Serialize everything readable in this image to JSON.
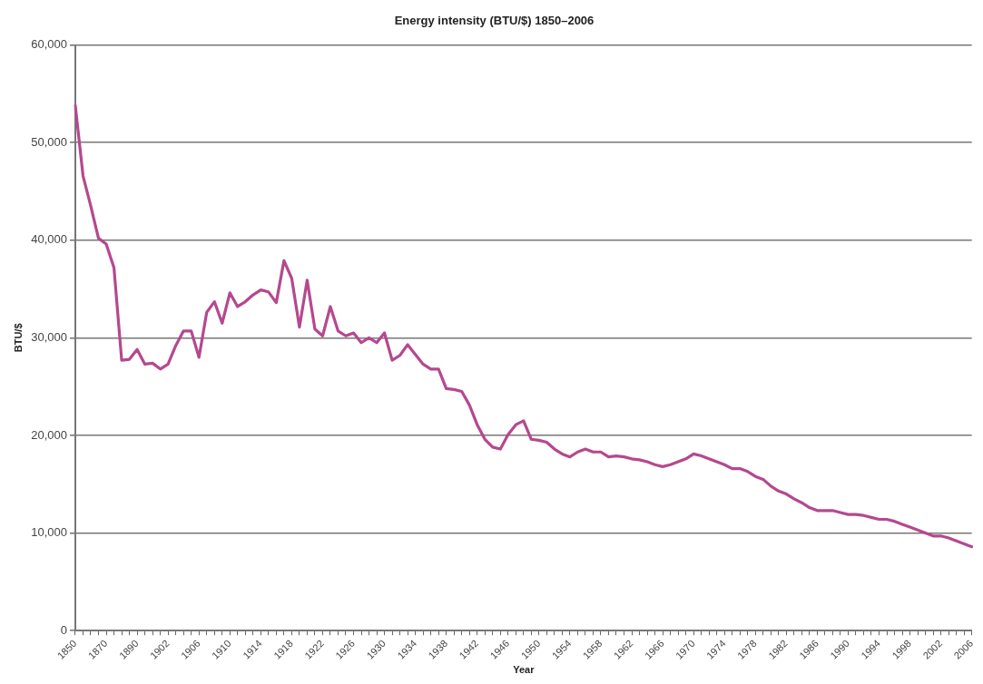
{
  "chart_data": {
    "type": "line",
    "title": "Energy intensity (BTU/$) 1850–2006",
    "xlabel": "Year",
    "ylabel": "BTU/$",
    "categories": [
      "1850",
      null,
      null,
      null,
      "1870",
      null,
      null,
      null,
      "1890",
      null,
      null,
      null,
      "1902",
      null,
      null,
      null,
      "1906",
      null,
      null,
      null,
      "1910",
      null,
      null,
      null,
      "1914",
      null,
      null,
      null,
      "1918",
      null,
      null,
      null,
      "1922",
      null,
      null,
      null,
      "1926",
      null,
      null,
      null,
      "1930",
      null,
      null,
      null,
      "1934",
      null,
      null,
      null,
      "1938",
      null,
      null,
      null,
      "1942",
      null,
      null,
      null,
      "1946",
      null,
      null,
      null,
      "1950",
      null,
      null,
      null,
      "1954",
      null,
      null,
      null,
      "1958",
      null,
      null,
      null,
      "1962",
      null,
      null,
      null,
      "1966",
      null,
      null,
      null,
      "1970",
      null,
      null,
      null,
      "1974",
      null,
      null,
      null,
      "1978",
      null,
      null,
      null,
      "1982",
      null,
      null,
      null,
      "1986",
      null,
      null,
      null,
      "1990",
      null,
      null,
      null,
      "1994",
      null,
      null,
      null,
      "1998",
      null,
      null,
      null,
      "2002",
      null,
      null,
      null,
      "2006"
    ],
    "series": [
      {
        "color": "#b5488f",
        "values": [
          53800,
          46600,
          43500,
          40200,
          39600,
          37200,
          27700,
          27800,
          28800,
          27300,
          27400,
          26800,
          27300,
          29200,
          30700,
          30700,
          28000,
          32600,
          33700,
          31500,
          34600,
          33200,
          33700,
          34400,
          34900,
          34700,
          33600,
          37900,
          36100,
          31100,
          35900,
          30900,
          30200,
          33200,
          30700,
          30200,
          30500,
          29500,
          30000,
          29500,
          30500,
          27700,
          28200,
          29300,
          28300,
          27300,
          26800,
          26800,
          24800,
          24700,
          24500,
          23100,
          21100,
          19600,
          18800,
          18600,
          20100,
          21100,
          21500,
          19600,
          19500,
          19300,
          18600,
          18100,
          17800,
          18300,
          18600,
          18300,
          18300,
          17800,
          17900,
          17800,
          17600,
          17500,
          17300,
          17000,
          16800,
          17000,
          17300,
          17600,
          18100,
          17900,
          17600,
          17300,
          17000,
          16600,
          16600,
          16300,
          15800,
          15500,
          14800,
          14300,
          14000,
          13500,
          13100,
          12600,
          12300,
          12300,
          12300,
          12100,
          11900,
          11900,
          11800,
          11600,
          11400,
          11400,
          11200,
          10900,
          10600,
          10300,
          10000,
          9700,
          9700,
          9500,
          9200,
          8900,
          8600
        ]
      }
    ],
    "ylim": [
      0,
      60000
    ],
    "yticks": [
      {
        "value": 0,
        "label": "0"
      },
      {
        "value": 10000,
        "label": "10,000"
      },
      {
        "value": 20000,
        "label": "20,000"
      },
      {
        "value": 30000,
        "label": "30,000"
      },
      {
        "value": 40000,
        "label": "40,000"
      },
      {
        "value": 50000,
        "label": "50,000"
      },
      {
        "value": 60000,
        "label": "60,000"
      }
    ],
    "grid": "y",
    "legend": false,
    "marker": "none",
    "line_style": "solid"
  }
}
